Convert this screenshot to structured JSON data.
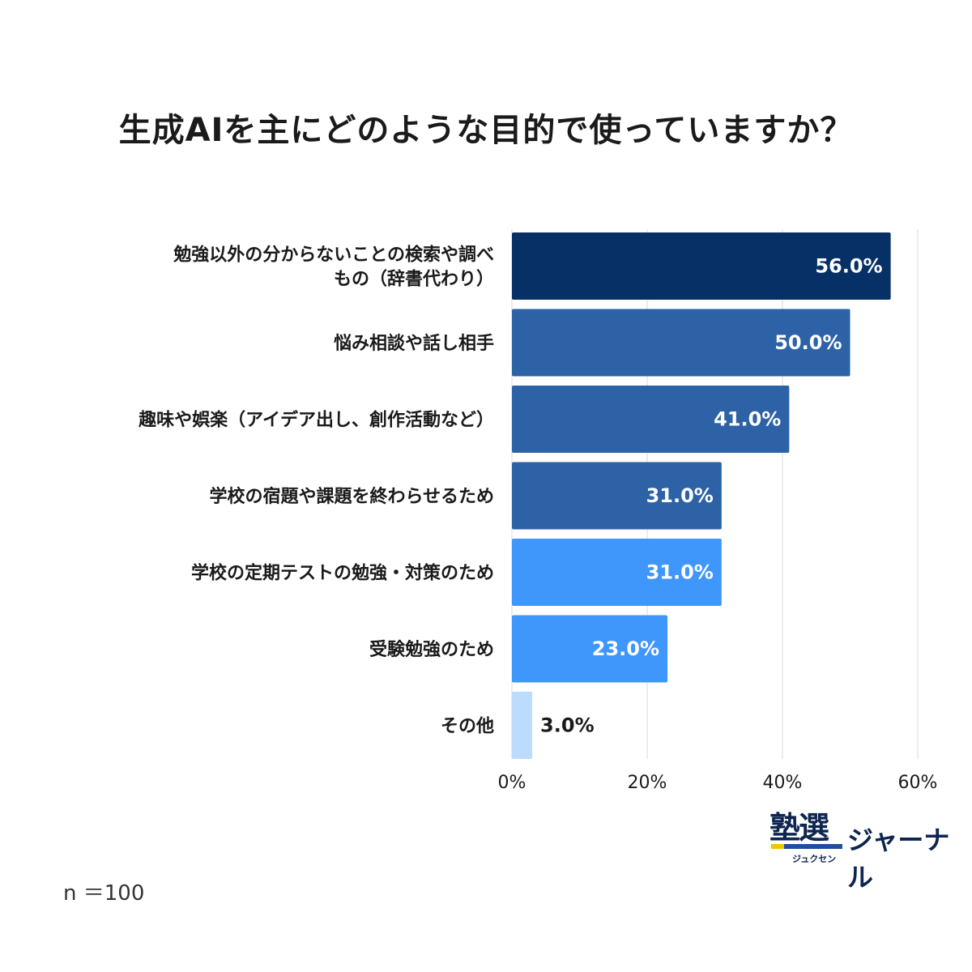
{
  "chart_data": {
    "type": "bar",
    "orientation": "horizontal",
    "title": "生成AIを主にどのような目的で使っていますか？",
    "categories": [
      [
        "勉強以外の分からないことの検索や調べ",
        "もの（辞書代わり）"
      ],
      [
        "悩み相談や話し相手"
      ],
      [
        "趣味や娯楽（アイデア出し、創作活動など）"
      ],
      [
        "学校の宿題や課題を終わらせるため"
      ],
      [
        "学校の定期テストの勉強・対策のため"
      ],
      [
        "受験勉強のため"
      ],
      [
        "その他"
      ]
    ],
    "values": [
      56.0,
      50.0,
      41.0,
      31.0,
      31.0,
      23.0,
      3.0
    ],
    "value_labels": [
      "56.0%",
      "50.0%",
      "41.0%",
      "31.0%",
      "31.0%",
      "23.0%",
      "3.0%"
    ],
    "colors": [
      "#073066",
      "#2d62a6",
      "#2d62a6",
      "#2d62a6",
      "#3f96fb",
      "#3f96fb",
      "#bcdcfd"
    ],
    "xlim": [
      0,
      60
    ],
    "xticks": [
      0,
      20,
      40,
      60
    ],
    "xtick_labels": [
      "0%",
      "20%",
      "40%",
      "60%"
    ],
    "grid": true,
    "note": "n ＝100"
  },
  "logo": {
    "kanji": "塾選",
    "kana": "ジュクセン",
    "journal": "ジャーナル"
  }
}
